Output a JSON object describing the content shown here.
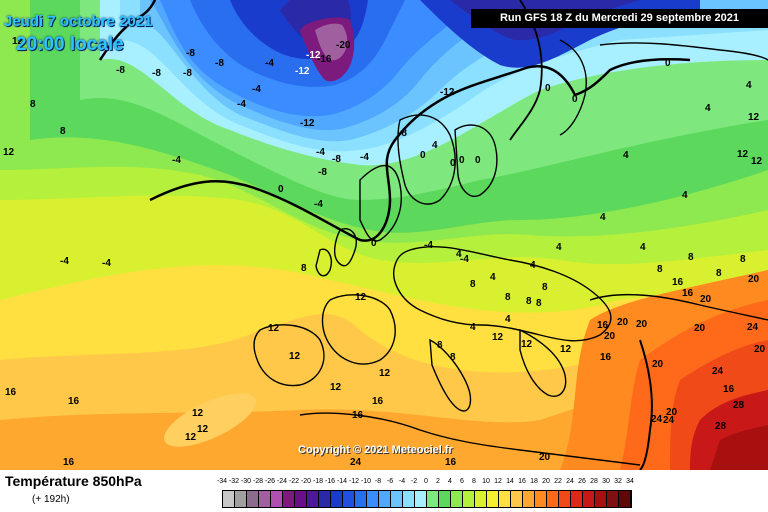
{
  "header": {
    "date": "Jeudi 7 octobre 2021",
    "time": "20:00 locale",
    "run": "Run GFS 18 Z du Mercredi 29 septembre 2021"
  },
  "copyright": "Copyright © 2021 Meteociel.fr",
  "footer": {
    "field": "Température 850hPa",
    "lead": "(+ 192h)"
  },
  "scale": {
    "labels": [
      "-34",
      "-32",
      "-30",
      "-28",
      "-26",
      "-24",
      "-22",
      "-20",
      "-18",
      "-16",
      "-14",
      "-12",
      "-10",
      "-8",
      "-6",
      "-4",
      "-2",
      "0",
      "2",
      "4",
      "6",
      "8",
      "10",
      "12",
      "14",
      "16",
      "18",
      "20",
      "22",
      "24",
      "26",
      "28",
      "30",
      "32",
      "34"
    ],
    "colors": [
      "#c8c8c8",
      "#a0a0a0",
      "#8c6c8c",
      "#a060a0",
      "#b050b0",
      "#7d1a7d",
      "#6a0f8a",
      "#4a1a9a",
      "#2a2aa8",
      "#1a3ccc",
      "#2050e0",
      "#2a6ef0",
      "#3a8cff",
      "#50a8ff",
      "#6cc4ff",
      "#8ce0ff",
      "#a8f0ff",
      "#7ee87e",
      "#5cd85c",
      "#8ee850",
      "#b4f03c",
      "#d8f030",
      "#f4f030",
      "#ffe040",
      "#ffc848",
      "#ffa830",
      "#ff8a20",
      "#ff6a1a",
      "#f04a18",
      "#e02818",
      "#c81818",
      "#a81010",
      "#801010",
      "#600808"
    ]
  },
  "isotherm_labels": [
    "-12",
    "-16",
    "-20",
    "-12",
    "-8",
    "-8",
    "-8",
    "-4",
    "-4",
    "-4",
    "-8",
    "-12",
    "-8",
    "-12",
    "-8",
    "-4",
    "-4",
    "-4",
    "-8",
    "-4",
    "0",
    "0",
    "0",
    "0",
    "0",
    "0",
    "4",
    "4",
    "4",
    "4",
    "4",
    "4",
    "8",
    "8",
    "8",
    "8",
    "8",
    "12",
    "12",
    "12",
    "12",
    "12",
    "12",
    "12",
    "12",
    "12",
    "16",
    "16",
    "16",
    "16",
    "16",
    "16",
    "16",
    "16",
    "16",
    "20",
    "20",
    "20",
    "20",
    "20",
    "20",
    "20",
    "20",
    "24",
    "24",
    "24",
    "24",
    "24",
    "28",
    "28",
    "-8",
    "12",
    "8",
    "8",
    "-4",
    "-4",
    "4",
    "-4",
    "-4",
    "8",
    "8",
    "0",
    "0",
    "0",
    "4",
    "4",
    "8",
    "8",
    "12",
    "12",
    "12",
    "12",
    "16",
    "20",
    "20",
    "12",
    "12",
    "16",
    "8",
    "4",
    "4",
    "4",
    "4",
    "8",
    "8"
  ],
  "legend_colors": {
    "land_border": "#000000",
    "background": "#ffffff"
  }
}
